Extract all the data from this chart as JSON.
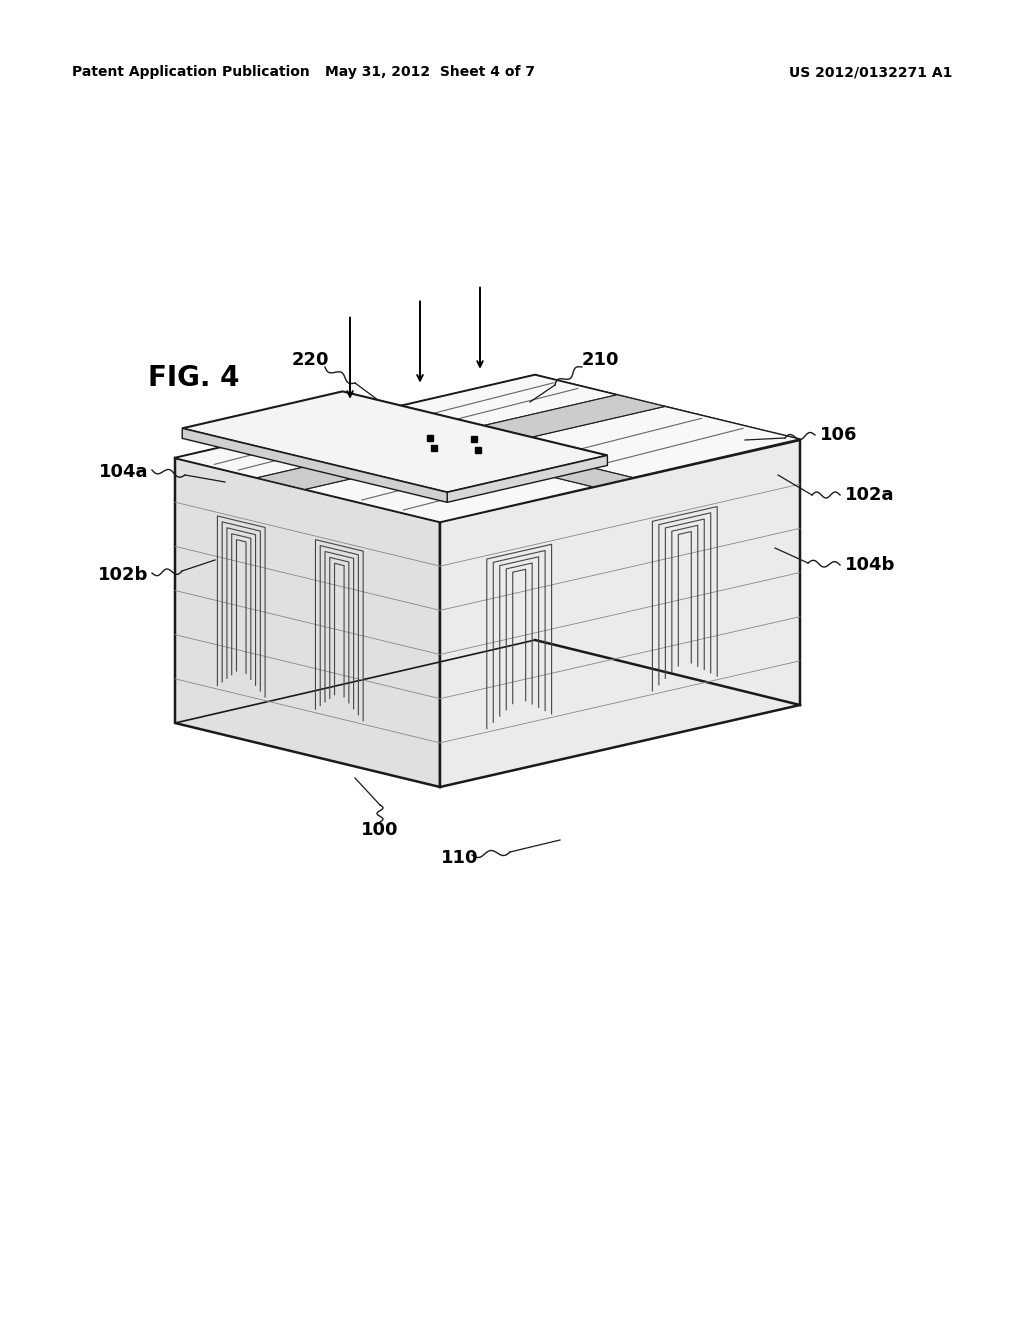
{
  "bg_color": "#ffffff",
  "line_color": "#1a1a1a",
  "header_left": "Patent Application Publication",
  "header_center": "May 31, 2012  Sheet 4 of 7",
  "header_right": "US 2012/0132271 A1",
  "fig_label": "FIG. 4"
}
